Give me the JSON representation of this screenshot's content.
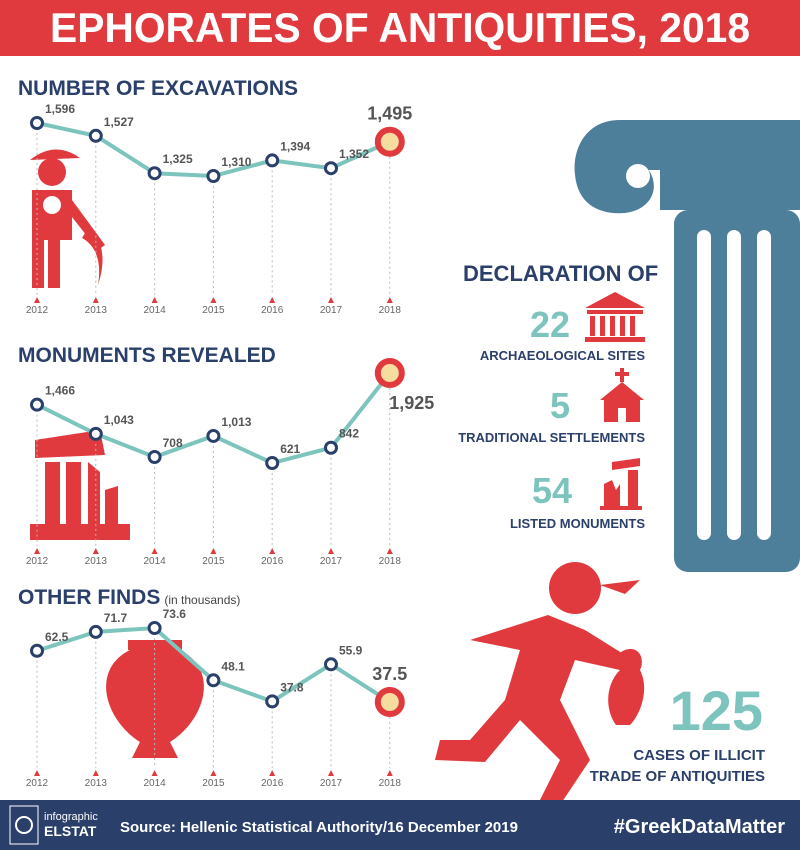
{
  "title": "EPHORATES OF ANTIQUITIES, 2018",
  "chart_data": [
    {
      "type": "line",
      "title": "NUMBER OF EXCAVATIONS",
      "categories": [
        "2012",
        "2013",
        "2014",
        "2015",
        "2016",
        "2017",
        "2018"
      ],
      "values": [
        1596,
        1527,
        1325,
        1310,
        1394,
        1352,
        1495
      ],
      "value_labels": [
        "1,596",
        "1,527",
        "1,325",
        "1,310",
        "1,394",
        "1,352",
        "1,495"
      ],
      "color": "#7cc4bd"
    },
    {
      "type": "line",
      "title": "MONUMENTS REVEALED",
      "categories": [
        "2012",
        "2013",
        "2014",
        "2015",
        "2016",
        "2017",
        "2018"
      ],
      "values": [
        1466,
        1043,
        708,
        1013,
        621,
        842,
        1925
      ],
      "value_labels": [
        "1,466",
        "1,043",
        "708",
        "1,013",
        "621",
        "842",
        "1,925"
      ],
      "color": "#7cc4bd"
    },
    {
      "type": "line",
      "title": "OTHER FINDS",
      "subtitle": "(in thousands)",
      "categories": [
        "2012",
        "2013",
        "2014",
        "2015",
        "2016",
        "2017",
        "2018"
      ],
      "values": [
        62.5,
        71.7,
        73.6,
        48.1,
        37.8,
        55.9,
        37.5
      ],
      "color": "#7cc4bd"
    }
  ],
  "declaration": {
    "title": "DECLARATION OF",
    "items": [
      {
        "value": 22,
        "label": "ARCHAEOLOGICAL SITES"
      },
      {
        "value": 5,
        "label": "TRADITIONAL SETTLEMENTS"
      },
      {
        "value": 54,
        "label": "LISTED  MONUMENTS"
      }
    ]
  },
  "illicit": {
    "value": 125,
    "label": [
      "CASES OF ILLICIT",
      "TRADE  OF ANTIQUITIES"
    ]
  },
  "footer": {
    "logo": [
      "infographic",
      "ELSTAT"
    ],
    "source": "Source: Hellenic Statistical Authority/16 December 2019",
    "hashtag": "#GreekDataMatter"
  }
}
